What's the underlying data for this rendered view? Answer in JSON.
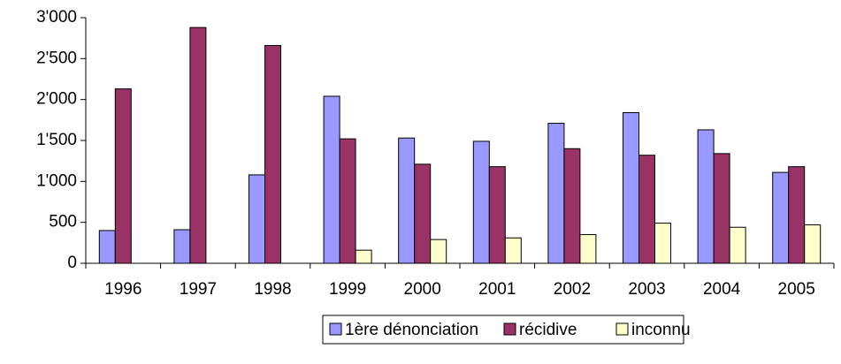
{
  "chart_data": {
    "type": "bar",
    "categories": [
      "1996",
      "1997",
      "1998",
      "1999",
      "2000",
      "2001",
      "2002",
      "2003",
      "2004",
      "2005"
    ],
    "series": [
      {
        "name": "1ère dénonciation",
        "color": "#9999ff",
        "values": [
          400,
          410,
          1080,
          2040,
          1530,
          1490,
          1710,
          1840,
          1630,
          1110
        ]
      },
      {
        "name": "récidive",
        "color": "#993366",
        "values": [
          2130,
          2880,
          2660,
          1520,
          1210,
          1180,
          1400,
          1320,
          1340,
          1180
        ]
      },
      {
        "name": "inconnu",
        "color": "#ffffcc",
        "values": [
          null,
          null,
          null,
          160,
          290,
          310,
          350,
          490,
          440,
          470
        ]
      }
    ],
    "ylim": [
      0,
      3000
    ],
    "yticks": [
      0,
      500,
      {
        "value": 1000,
        "label": "1'000"
      },
      {
        "value": 1500,
        "label": "1'500"
      },
      {
        "value": 2000,
        "label": "2'000"
      },
      {
        "value": 2500,
        "label": "2'500"
      },
      {
        "value": 3000,
        "label": "3'000"
      }
    ],
    "grid": false,
    "legend": "bottom"
  }
}
